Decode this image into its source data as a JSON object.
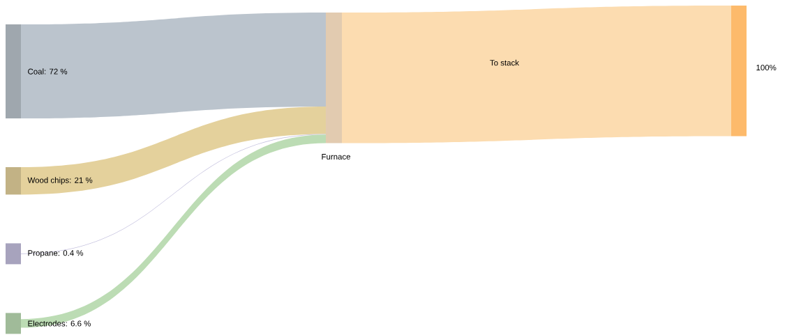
{
  "chart_data": {
    "type": "other",
    "values": [
      72,
      21,
      0.4,
      6.6
    ],
    "value_labels": [
      "Coal: 72 %",
      "Wood chips: 21 %",
      "Propane: 0.4 %",
      "Electrodes: 6.6 %"
    ],
    "colors": [
      "#bbc4cd",
      "#e4d19c",
      "#c4c0de",
      "#bcdcb4"
    ],
    "annotations": [
      "Furnace",
      "To stack",
      "100%"
    ]
  }
}
